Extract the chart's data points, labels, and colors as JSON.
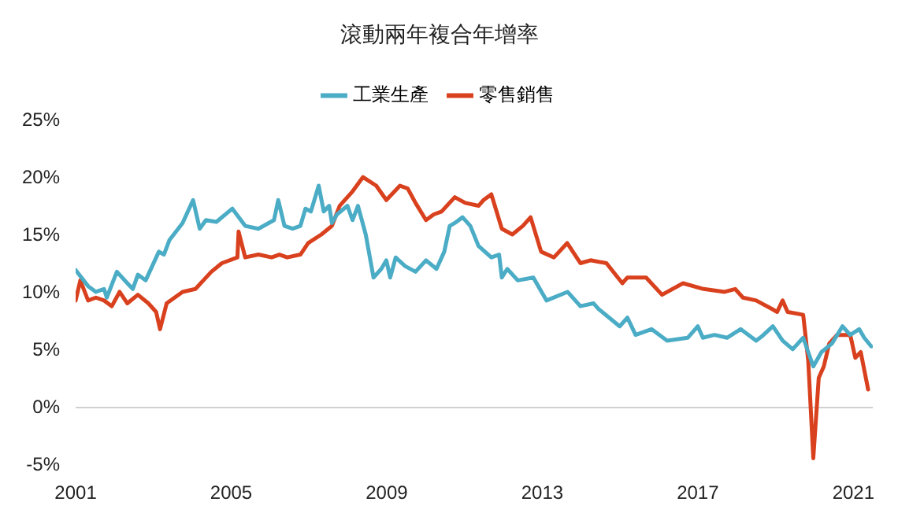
{
  "chart_data": {
    "type": "line",
    "title": "滾動兩年複合年增率",
    "legend": "top",
    "marker": "none",
    "xlim": [
      2001,
      2021.5
    ],
    "xticks": [
      2001,
      2005,
      2009,
      2013,
      2017,
      2021
    ],
    "ylim": [
      -5,
      25
    ],
    "yticks": [
      {
        "value": -5,
        "label": "-5%"
      },
      {
        "value": 0,
        "label": "0%"
      },
      {
        "value": 5,
        "label": "5%"
      },
      {
        "value": 10,
        "label": "10%"
      },
      {
        "value": 15,
        "label": "15%"
      },
      {
        "value": 20,
        "label": "20%"
      },
      {
        "value": 25,
        "label": "25%"
      }
    ],
    "series": [
      {
        "name": "工業生產",
        "color": "#4bacc6",
        "x": [
          2001.0,
          2001.32,
          2001.52,
          2001.73,
          2001.8,
          2002.06,
          2002.33,
          2002.47,
          2002.6,
          2002.8,
          2003.14,
          2003.27,
          2003.41,
          2003.75,
          2004.02,
          2004.19,
          2004.35,
          2004.62,
          2005.03,
          2005.36,
          2005.7,
          2006.1,
          2006.21,
          2006.37,
          2006.58,
          2006.78,
          2006.91,
          2007.05,
          2007.25,
          2007.38,
          2007.52,
          2007.59,
          2007.72,
          2007.99,
          2008.12,
          2008.26,
          2008.46,
          2008.66,
          2008.86,
          2008.99,
          2009.09,
          2009.23,
          2009.47,
          2009.74,
          2010.01,
          2010.28,
          2010.48,
          2010.62,
          2010.75,
          2010.95,
          2011.15,
          2011.36,
          2011.69,
          2011.89,
          2011.96,
          2012.1,
          2012.37,
          2012.77,
          2013.11,
          2013.65,
          2013.98,
          2014.32,
          2014.45,
          2014.72,
          2014.99,
          2015.19,
          2015.4,
          2015.81,
          2016.21,
          2016.74,
          2017.0,
          2017.13,
          2017.43,
          2017.75,
          2018.1,
          2018.5,
          2018.64,
          2018.93,
          2019.18,
          2019.44,
          2019.71,
          2019.84,
          2019.97,
          2020.18,
          2020.45,
          2020.72,
          2020.92,
          2021.15,
          2021.28,
          2021.46
        ],
        "values": [
          12.0,
          10.6,
          10.1,
          10.35,
          9.6,
          11.85,
          10.85,
          10.35,
          11.6,
          11.1,
          13.6,
          13.35,
          14.6,
          16.1,
          18.1,
          15.6,
          16.35,
          16.2,
          17.35,
          15.85,
          15.6,
          16.35,
          18.1,
          15.85,
          15.6,
          15.85,
          17.35,
          17.1,
          19.35,
          17.1,
          17.6,
          16.1,
          16.85,
          17.6,
          16.35,
          17.6,
          15.1,
          11.35,
          12.1,
          12.85,
          11.35,
          13.1,
          12.35,
          11.85,
          12.85,
          12.1,
          13.6,
          15.85,
          16.1,
          16.6,
          15.85,
          14.1,
          13.1,
          13.35,
          11.35,
          12.1,
          11.1,
          11.35,
          9.35,
          10.1,
          8.85,
          9.1,
          8.6,
          7.85,
          7.1,
          7.85,
          6.35,
          6.85,
          5.85,
          6.1,
          7.1,
          6.1,
          6.35,
          6.1,
          6.85,
          5.85,
          6.2,
          7.1,
          5.85,
          5.1,
          6.1,
          4.85,
          3.6,
          4.85,
          5.6,
          7.1,
          6.35,
          6.85,
          6.1,
          5.35
        ]
      },
      {
        "name": "零售銷售",
        "color": "#d9411e",
        "x": [
          2001.0,
          2001.12,
          2001.32,
          2001.52,
          2001.73,
          2001.93,
          2002.13,
          2002.33,
          2002.6,
          2002.87,
          2003.07,
          2003.17,
          2003.34,
          2003.75,
          2004.08,
          2004.49,
          2004.76,
          2005.16,
          2005.19,
          2005.36,
          2005.7,
          2006.04,
          2006.24,
          2006.44,
          2006.78,
          2006.98,
          2007.32,
          2007.59,
          2007.79,
          2008.12,
          2008.39,
          2008.73,
          2008.99,
          2009.34,
          2009.54,
          2009.74,
          2010.01,
          2010.21,
          2010.41,
          2010.75,
          2011.02,
          2011.36,
          2011.49,
          2011.69,
          2011.96,
          2012.23,
          2012.5,
          2012.7,
          2012.97,
          2013.3,
          2013.64,
          2013.98,
          2014.24,
          2014.65,
          2015.06,
          2015.19,
          2015.67,
          2016.08,
          2016.62,
          2017.15,
          2017.69,
          2017.96,
          2018.16,
          2018.5,
          2018.91,
          2019.04,
          2019.18,
          2019.31,
          2019.71,
          2019.84,
          2019.97,
          2020.11,
          2020.24,
          2020.38,
          2020.58,
          2020.92,
          2021.05,
          2021.19,
          2021.38
        ],
        "values": [
          9.35,
          11.1,
          9.35,
          9.6,
          9.35,
          8.85,
          10.1,
          9.1,
          9.85,
          9.1,
          8.35,
          6.85,
          9.1,
          10.1,
          10.35,
          11.85,
          12.6,
          13.1,
          15.35,
          13.1,
          13.35,
          13.1,
          13.35,
          13.1,
          13.35,
          14.35,
          15.1,
          15.85,
          17.6,
          18.85,
          20.1,
          19.35,
          18.1,
          19.35,
          19.1,
          17.85,
          16.35,
          16.85,
          17.1,
          18.35,
          17.85,
          17.6,
          18.1,
          18.6,
          15.6,
          15.1,
          15.85,
          16.6,
          13.6,
          13.1,
          14.35,
          12.6,
          12.85,
          12.6,
          10.85,
          11.35,
          11.35,
          9.85,
          10.85,
          10.35,
          10.1,
          10.35,
          9.6,
          9.35,
          8.6,
          8.35,
          9.35,
          8.35,
          8.1,
          4.1,
          -4.4,
          2.6,
          3.6,
          5.6,
          6.35,
          6.35,
          4.35,
          4.85,
          1.6
        ]
      }
    ]
  }
}
